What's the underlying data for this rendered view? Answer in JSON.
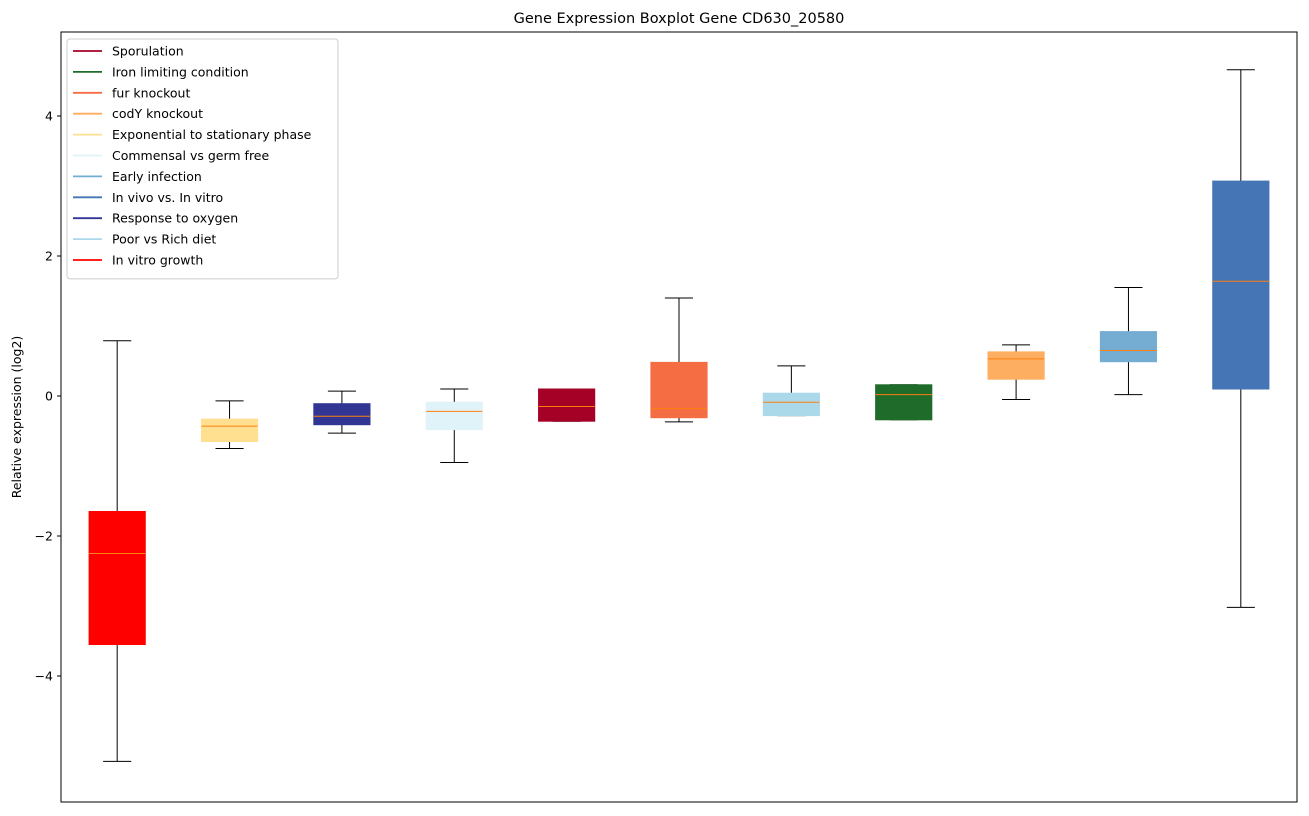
{
  "chart_data": {
    "type": "boxplot",
    "title": "Gene Expression Boxplot Gene CD630_20580",
    "xlabel": "",
    "ylabel": "Relative expression (log2)",
    "ylim": [
      -5.8,
      5.2
    ],
    "yticks": [
      -4,
      -2,
      0,
      2,
      4
    ],
    "ytick_labels": [
      "−4",
      "−2",
      "0",
      "2",
      "4"
    ],
    "grid": false,
    "legend_position": "top-left",
    "median_color": "#ff7f0e",
    "legend": [
      {
        "label": "Sporulation",
        "color": "#a50026"
      },
      {
        "label": "Iron limiting condition",
        "color": "#1e6b2a"
      },
      {
        "label": "fur knockout",
        "color": "#f46d43"
      },
      {
        "label": "codY knockout",
        "color": "#fdae61"
      },
      {
        "label": "Exponential to stationary phase",
        "color": "#fee090"
      },
      {
        "label": "Commensal vs germ free",
        "color": "#e0f3f8"
      },
      {
        "label": "Early infection",
        "color": "#74add1"
      },
      {
        "label": "In vivo vs. In vitro",
        "color": "#4575b4"
      },
      {
        "label": "Response to oxygen",
        "color": "#313695"
      },
      {
        "label": "Poor vs Rich diet",
        "color": "#abd9e9"
      },
      {
        "label": "In vitro growth",
        "color": "#ff0000"
      }
    ],
    "boxes": [
      {
        "series": "In vitro growth",
        "color": "#ff0000",
        "whisker_low": -5.22,
        "q1": -3.55,
        "median": -2.25,
        "q3": -1.65,
        "whisker_high": 0.79
      },
      {
        "series": "Exponential to stationary phase",
        "color": "#fee090",
        "whisker_low": -0.75,
        "q1": -0.65,
        "median": -0.43,
        "q3": -0.33,
        "whisker_high": -0.07
      },
      {
        "series": "Response to oxygen",
        "color": "#313695",
        "whisker_low": -0.53,
        "q1": -0.41,
        "median": -0.29,
        "q3": -0.11,
        "whisker_high": 0.07
      },
      {
        "series": "Commensal vs germ free",
        "color": "#e0f3f8",
        "whisker_low": -0.95,
        "q1": -0.48,
        "median": -0.22,
        "q3": -0.09,
        "whisker_high": 0.1
      },
      {
        "series": "Sporulation",
        "color": "#a50026",
        "whisker_low": -0.36,
        "q1": -0.36,
        "median": -0.15,
        "q3": 0.1,
        "whisker_high": 0.1
      },
      {
        "series": "fur knockout",
        "color": "#f46d43",
        "whisker_low": -0.37,
        "q1": -0.31,
        "median": -0.18,
        "q3": 0.48,
        "whisker_high": 1.4
      },
      {
        "series": "Poor vs Rich diet",
        "color": "#abd9e9",
        "whisker_low": -0.28,
        "q1": -0.28,
        "median": -0.09,
        "q3": 0.04,
        "whisker_high": 0.43
      },
      {
        "series": "Iron limiting condition",
        "color": "#1e6b2a",
        "whisker_low": -0.34,
        "q1": -0.34,
        "median": 0.02,
        "q3": 0.16,
        "whisker_high": 0.16
      },
      {
        "series": "codY knockout",
        "color": "#fdae61",
        "whisker_low": -0.05,
        "q1": 0.24,
        "median": 0.53,
        "q3": 0.63,
        "whisker_high": 0.73
      },
      {
        "series": "Early infection",
        "color": "#74add1",
        "whisker_low": 0.02,
        "q1": 0.49,
        "median": 0.65,
        "q3": 0.92,
        "whisker_high": 1.55
      },
      {
        "series": "In vivo vs. In vitro",
        "color": "#4575b4",
        "whisker_low": -3.02,
        "q1": 0.1,
        "median": 1.64,
        "q3": 3.07,
        "whisker_high": 4.66
      }
    ]
  }
}
